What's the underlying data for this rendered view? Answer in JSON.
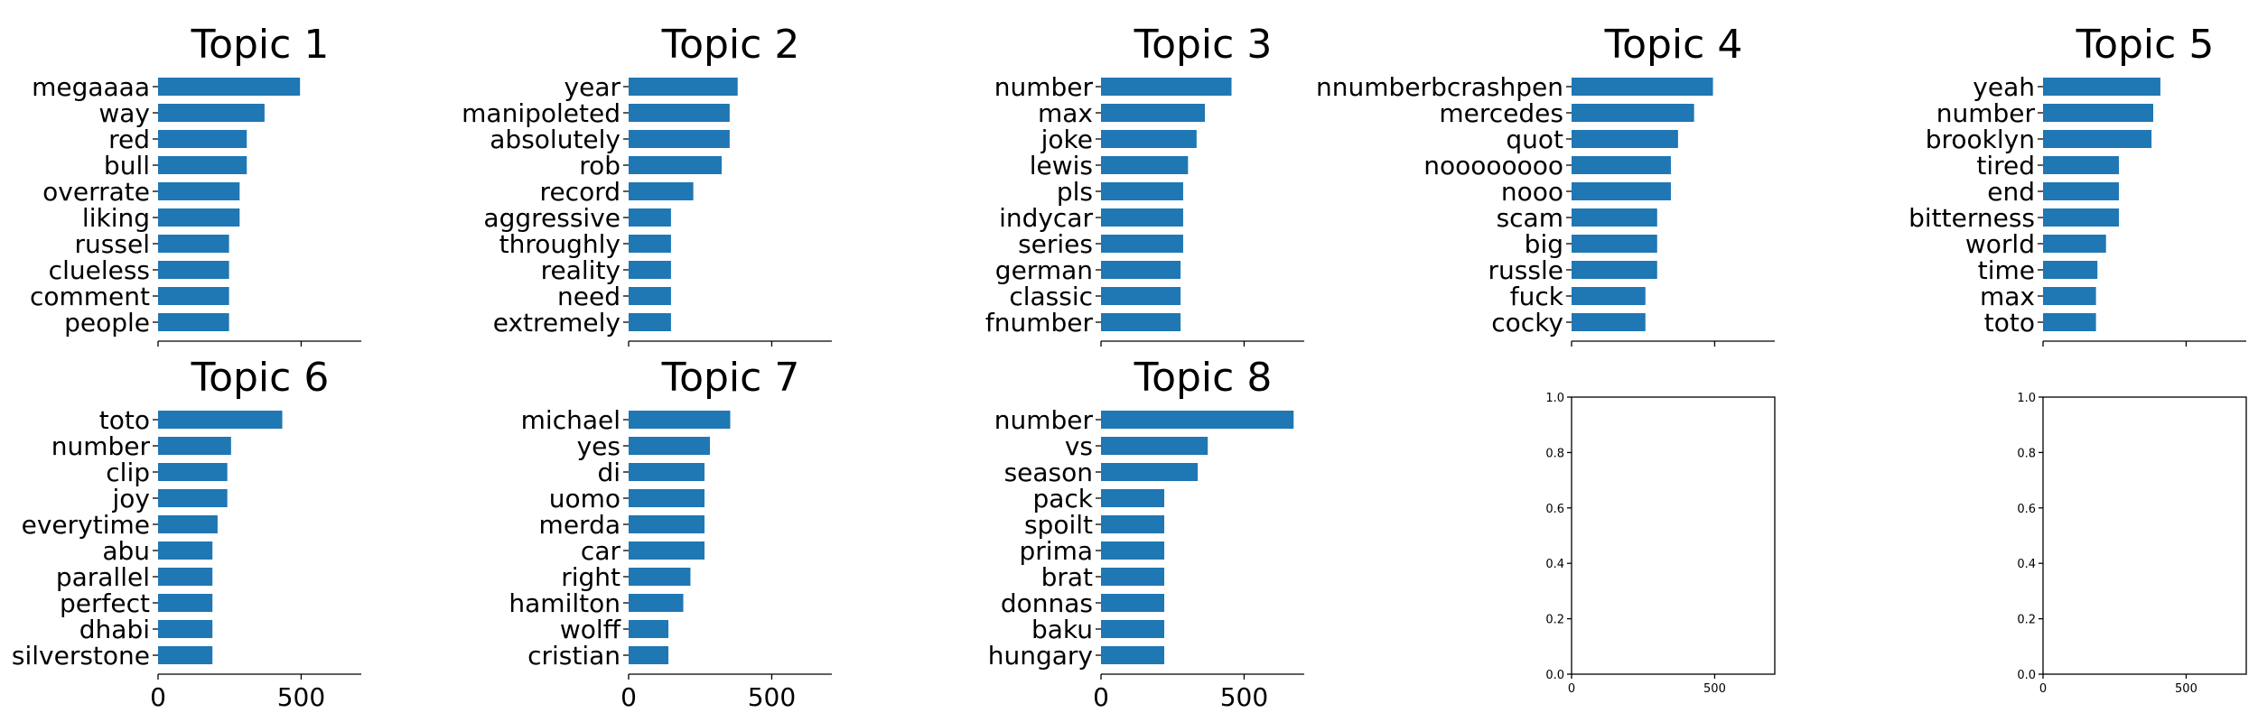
{
  "chart_data": [
    {
      "type": "bar",
      "orientation": "horizontal",
      "title": "Topic 1",
      "categories": [
        "megaaaa",
        "way",
        "red",
        "bull",
        "overrate",
        "liking",
        "russel",
        "clueless",
        "comment",
        "people"
      ],
      "values": [
        496,
        372,
        310,
        310,
        285,
        285,
        248,
        248,
        248,
        248
      ],
      "xlim": [
        0,
        710
      ],
      "xticks": [
        0,
        500
      ],
      "show_tick_labels": false
    },
    {
      "type": "bar",
      "orientation": "horizontal",
      "title": "Topic 2",
      "categories": [
        "year",
        "manipoleted",
        "absolutely",
        "rob",
        "record",
        "aggressive",
        "throughly",
        "reality",
        "need",
        "extremely"
      ],
      "values": [
        381,
        353,
        353,
        325,
        226,
        148,
        148,
        148,
        148,
        148
      ],
      "xlim": [
        0,
        710
      ],
      "xticks": [
        0,
        500
      ],
      "show_tick_labels": false
    },
    {
      "type": "bar",
      "orientation": "horizontal",
      "title": "Topic 3",
      "categories": [
        "number",
        "max",
        "joke",
        "lewis",
        "pls",
        "indycar",
        "series",
        "german",
        "classic",
        "fnumber"
      ],
      "values": [
        456,
        363,
        334,
        304,
        287,
        287,
        287,
        278,
        278,
        278
      ],
      "xlim": [
        0,
        710
      ],
      "xticks": [
        0,
        500
      ],
      "show_tick_labels": false
    },
    {
      "type": "bar",
      "orientation": "horizontal",
      "title": "Topic 4",
      "categories": [
        "nnumberbcrashpen",
        "mercedes",
        "quot",
        "noooooooo",
        "nooo",
        "scam",
        "big",
        "russle",
        "fuck",
        "cocky"
      ],
      "values": [
        494,
        428,
        372,
        347,
        347,
        299,
        299,
        299,
        258,
        258
      ],
      "xlim": [
        0,
        710
      ],
      "xticks": [
        0,
        500
      ],
      "show_tick_labels": false
    },
    {
      "type": "bar",
      "orientation": "horizontal",
      "title": "Topic 5",
      "categories": [
        "yeah",
        "number",
        "brooklyn",
        "tired",
        "end",
        "bitterness",
        "world",
        "time",
        "max",
        "toto"
      ],
      "values": [
        410,
        385,
        379,
        265,
        265,
        265,
        220,
        190,
        185,
        185
      ],
      "xlim": [
        0,
        710
      ],
      "xticks": [
        0,
        500
      ],
      "show_tick_labels": false
    },
    {
      "type": "bar",
      "orientation": "horizontal",
      "title": "Topic 6",
      "categories": [
        "toto",
        "number",
        "clip",
        "joy",
        "everytime",
        "abu",
        "parallel",
        "perfect",
        "dhabi",
        "silverstone"
      ],
      "values": [
        434,
        255,
        242,
        242,
        208,
        190,
        190,
        190,
        190,
        190
      ],
      "xlim": [
        0,
        710
      ],
      "xticks": [
        0,
        500
      ],
      "show_tick_labels": true
    },
    {
      "type": "bar",
      "orientation": "horizontal",
      "title": "Topic 7",
      "categories": [
        "michael",
        "yes",
        "di",
        "uomo",
        "merda",
        "car",
        "right",
        "hamilton",
        "wolff",
        "cristian"
      ],
      "values": [
        355,
        284,
        265,
        265,
        265,
        265,
        216,
        191,
        139,
        139
      ],
      "xlim": [
        0,
        710
      ],
      "xticks": [
        0,
        500
      ],
      "show_tick_labels": true
    },
    {
      "type": "bar",
      "orientation": "horizontal",
      "title": "Topic 8",
      "categories": [
        "number",
        "vs",
        "season",
        "pack",
        "spoilt",
        "prima",
        "brat",
        "donnas",
        "baku",
        "hungary"
      ],
      "values": [
        673,
        373,
        338,
        221,
        221,
        221,
        221,
        221,
        221,
        221
      ],
      "xlim": [
        0,
        710
      ],
      "xticks": [
        0,
        500
      ],
      "show_tick_labels": true
    },
    {
      "type": "empty",
      "title": "",
      "xlim": [
        0,
        710
      ],
      "xticks": [
        0,
        500
      ],
      "ylim": [
        0,
        1
      ],
      "yticks": [
        "0.0",
        "0.2",
        "0.4",
        "0.6",
        "0.8",
        "1.0"
      ]
    },
    {
      "type": "empty",
      "title": "",
      "xlim": [
        0,
        710
      ],
      "xticks": [
        0,
        500
      ],
      "ylim": [
        0,
        1
      ],
      "yticks": [
        "0.0",
        "0.2",
        "0.4",
        "0.6",
        "0.8",
        "1.0"
      ]
    }
  ]
}
